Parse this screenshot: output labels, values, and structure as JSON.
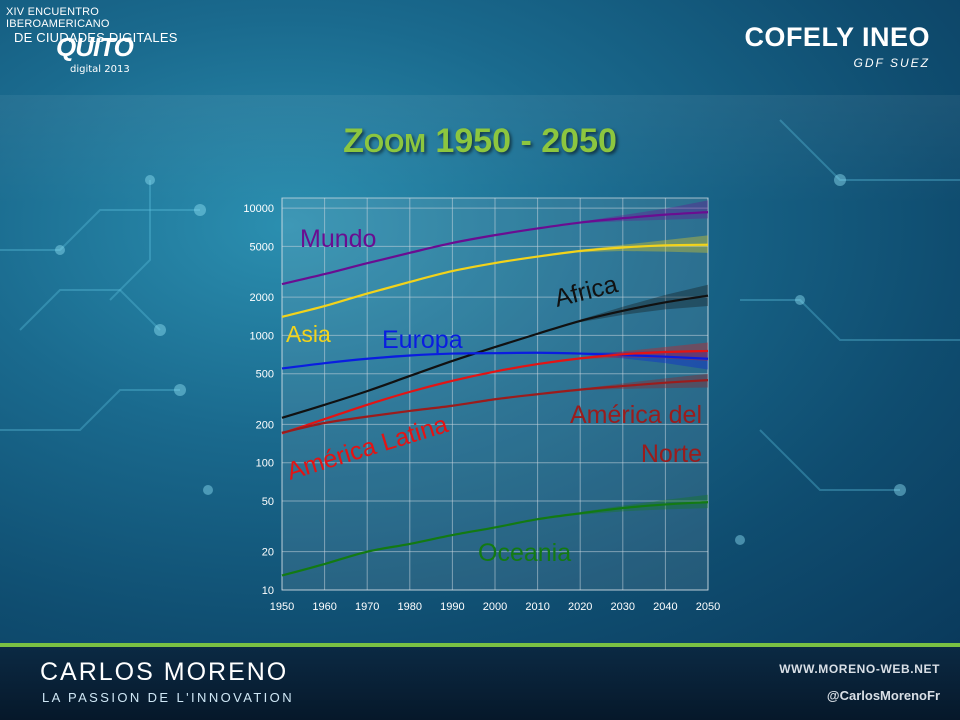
{
  "header": {
    "event_line1": "XIV ENCUENTRO IBEROAMERICANO",
    "event_line2": "DE CIUDADES DIGITALES",
    "event_logo_text": "QUITO",
    "event_logo_sub": "digital 2013",
    "brand_name": "COFELY INEO",
    "brand_sub": "GDF SUEZ"
  },
  "slide": {
    "title_first_letter": "Z",
    "title_rest_smallcaps": "OOM",
    "title_years": " 1950 - 2050"
  },
  "footer": {
    "author": "CARLOS MORENO",
    "tagline": "LA PASSION DE L'INNOVATION",
    "website": "WWW.MORENO-WEB.NET",
    "twitter": "@CarlosMorenoFr"
  },
  "colors": {
    "title": "#8cc63f",
    "mundo": "#6a0d91",
    "asia": "#f2d31b",
    "africa": "#111111",
    "europa": "#0a1de0",
    "america_latina": "#e31414",
    "america_norte": "#9b1c1c",
    "oceania": "#137a13"
  },
  "chart_data": {
    "type": "line",
    "title": "",
    "xlabel": "",
    "ylabel": "",
    "yscale": "log",
    "xlim": [
      1950,
      2050
    ],
    "ylim": [
      10,
      12000
    ],
    "xticks": [
      1950,
      1960,
      1970,
      1980,
      1990,
      2000,
      2010,
      2020,
      2030,
      2040,
      2050
    ],
    "yticks": [
      10,
      20,
      50,
      100,
      200,
      500,
      1000,
      2000,
      5000,
      10000
    ],
    "ytick_labels": [
      "10",
      "20",
      "50",
      "100",
      "200",
      "500",
      "1000",
      "2000",
      "5000",
      "10000"
    ],
    "grid": true,
    "legend": "none",
    "x": [
      1950,
      1960,
      1970,
      1980,
      1990,
      2000,
      2010,
      2020,
      2030,
      2040,
      2050
    ],
    "series": [
      {
        "name": "Mundo",
        "color": "#6a0d91",
        "values": [
          2530,
          3030,
          3690,
          4450,
          5320,
          6130,
          6920,
          7700,
          8320,
          8880,
          9300
        ],
        "lower": [
          null,
          null,
          null,
          null,
          null,
          null,
          null,
          7600,
          7900,
          8100,
          8300
        ],
        "upper": [
          null,
          null,
          null,
          null,
          null,
          null,
          null,
          7800,
          8800,
          9900,
          11500
        ]
      },
      {
        "name": "Asia",
        "color": "#f2d31b",
        "values": [
          1400,
          1700,
          2130,
          2630,
          3200,
          3700,
          4160,
          4600,
          4900,
          5100,
          5150
        ],
        "lower": [
          null,
          null,
          null,
          null,
          null,
          null,
          null,
          4500,
          4600,
          4550,
          4450
        ],
        "upper": [
          null,
          null,
          null,
          null,
          null,
          null,
          null,
          4700,
          5150,
          5600,
          6100
        ]
      },
      {
        "name": "Africa",
        "color": "#111111",
        "values": [
          225,
          285,
          365,
          480,
          630,
          810,
          1030,
          1300,
          1560,
          1820,
          2050
        ],
        "lower": [
          null,
          null,
          null,
          null,
          null,
          null,
          null,
          1270,
          1450,
          1600,
          1700
        ],
        "upper": [
          null,
          null,
          null,
          null,
          null,
          null,
          null,
          1330,
          1680,
          2080,
          2500
        ]
      },
      {
        "name": "Europa",
        "color": "#0a1de0",
        "values": [
          550,
          605,
          655,
          695,
          720,
          725,
          730,
          720,
          700,
          680,
          655
        ],
        "lower": [
          null,
          null,
          null,
          null,
          null,
          null,
          null,
          710,
          660,
          605,
          540
        ],
        "upper": [
          null,
          null,
          null,
          null,
          null,
          null,
          null,
          730,
          740,
          755,
          770
        ]
      },
      {
        "name": "América Latina",
        "color": "#e31414",
        "values": [
          170,
          220,
          285,
          360,
          440,
          520,
          595,
          660,
          710,
          740,
          755
        ],
        "lower": [
          null,
          null,
          null,
          null,
          null,
          null,
          null,
          650,
          670,
          660,
          630
        ],
        "upper": [
          null,
          null,
          null,
          null,
          null,
          null,
          null,
          670,
          750,
          810,
          880
        ]
      },
      {
        "name": "América del Norte",
        "color": "#9b1c1c",
        "values": [
          172,
          205,
          230,
          255,
          280,
          315,
          345,
          375,
          400,
          425,
          445
        ],
        "lower": [
          null,
          null,
          null,
          null,
          null,
          null,
          null,
          370,
          380,
          385,
          390
        ],
        "upper": [
          null,
          null,
          null,
          null,
          null,
          null,
          null,
          380,
          420,
          460,
          500
        ]
      },
      {
        "name": "Oceania",
        "color": "#137a13",
        "values": [
          13,
          16,
          20,
          23,
          27,
          31,
          36,
          40,
          44,
          47,
          49
        ],
        "lower": [
          null,
          null,
          null,
          null,
          null,
          null,
          null,
          39,
          41.5,
          43,
          44
        ],
        "upper": [
          null,
          null,
          null,
          null,
          null,
          null,
          null,
          41,
          46,
          51,
          56
        ]
      }
    ],
    "annotations": [
      "Mundo",
      "Asia",
      "Africa",
      "Europa",
      "América Latina",
      "América del",
      "Norte",
      "Oceania"
    ]
  }
}
